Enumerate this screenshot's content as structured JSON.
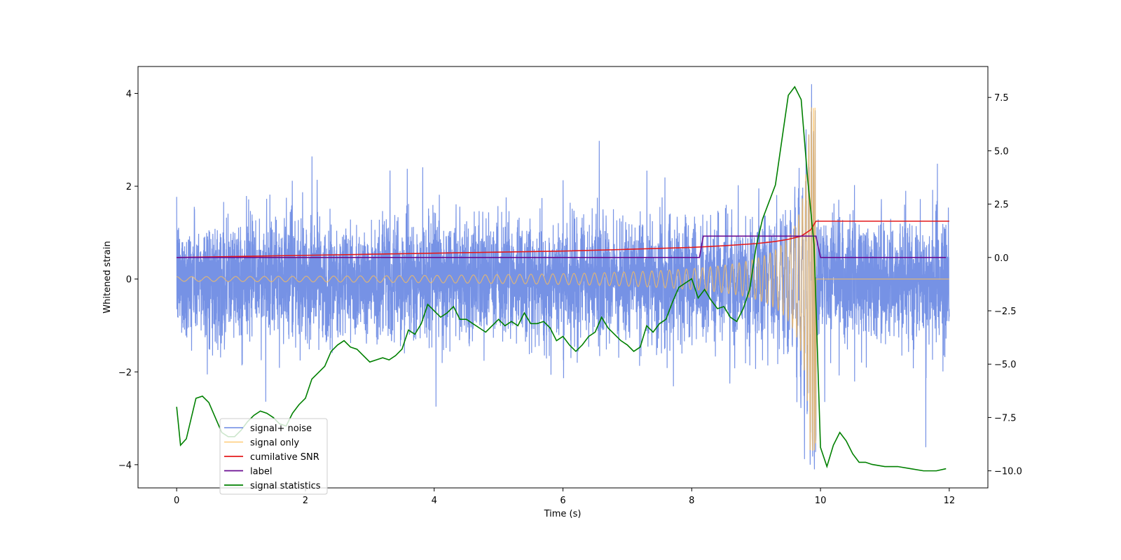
{
  "chart_data": {
    "type": "line",
    "title": "",
    "xlabel": "Time (s)",
    "ylabel": "Whitened strain",
    "y2label": "",
    "xlim": [
      -0.6,
      12.6
    ],
    "ylim": [
      -4.5,
      4.58
    ],
    "y2lim": [
      -10.8,
      8.95
    ],
    "xticks": [
      0,
      2,
      4,
      6,
      8,
      10,
      12
    ],
    "yticks": [
      -4,
      -2,
      0,
      2,
      4
    ],
    "y2ticks": [
      -10.0,
      -7.5,
      -5.0,
      -2.5,
      0.0,
      2.5,
      5.0,
      7.5
    ],
    "legend_position": "lower-left",
    "series": [
      {
        "name": "signal+ noise",
        "axis": "left",
        "color": "#6a89e3",
        "description": "Gaussian whitened noise (approx. +/-1.5 typical, spikes to about +/-4) sampled from 0 to 12 s, containing the inspiral chirp ending near 9.93 s"
      },
      {
        "name": "signal only",
        "axis": "left",
        "color": "#ffbf55",
        "chirp_start_amplitude": 0.05,
        "chirp_peak_amplitude": 3.7,
        "merger_time": 9.93,
        "description": "Chirp oscillation with amplitude growing from ~0.05 to ~3.7 at merger (~9.93 s), zero afterwards"
      },
      {
        "name": "cumilative SNR",
        "axis": "right",
        "color": "#e41a1c",
        "x": [
          0,
          1,
          2,
          3,
          4,
          5,
          6,
          7,
          8,
          8.5,
          9,
          9.3,
          9.5,
          9.7,
          9.85,
          9.93,
          10,
          12
        ],
        "y": [
          0,
          0.05,
          0.1,
          0.15,
          0.2,
          0.25,
          0.3,
          0.38,
          0.47,
          0.55,
          0.65,
          0.75,
          0.85,
          1.0,
          1.3,
          1.7,
          1.7,
          1.7
        ]
      },
      {
        "name": "label",
        "axis": "right",
        "color": "#6a0d91",
        "x": [
          0,
          8.12,
          8.18,
          9.93,
          10.0,
          11.95
        ],
        "y": [
          0,
          0,
          1,
          1,
          0,
          0
        ]
      },
      {
        "name": "signal statistics",
        "axis": "right",
        "color": "#008000",
        "x": [
          0,
          0.06,
          0.15,
          0.3,
          0.4,
          0.5,
          0.6,
          0.7,
          0.8,
          0.9,
          1.0,
          1.1,
          1.2,
          1.3,
          1.4,
          1.5,
          1.6,
          1.7,
          1.8,
          1.9,
          2.0,
          2.1,
          2.2,
          2.3,
          2.4,
          2.5,
          2.6,
          2.7,
          2.8,
          2.9,
          3.0,
          3.1,
          3.2,
          3.3,
          3.4,
          3.5,
          3.6,
          3.7,
          3.8,
          3.9,
          4.0,
          4.1,
          4.2,
          4.3,
          4.4,
          4.5,
          4.6,
          4.7,
          4.8,
          4.9,
          5.0,
          5.1,
          5.2,
          5.3,
          5.4,
          5.5,
          5.6,
          5.7,
          5.8,
          5.9,
          6.0,
          6.1,
          6.2,
          6.3,
          6.4,
          6.5,
          6.6,
          6.7,
          6.8,
          6.9,
          7.0,
          7.1,
          7.2,
          7.3,
          7.4,
          7.5,
          7.6,
          7.7,
          7.8,
          7.9,
          8.0,
          8.1,
          8.2,
          8.3,
          8.4,
          8.5,
          8.6,
          8.7,
          8.8,
          8.9,
          9.0,
          9.1,
          9.2,
          9.3,
          9.4,
          9.5,
          9.6,
          9.7,
          9.8,
          9.9,
          10.0,
          10.1,
          10.2,
          10.3,
          10.4,
          10.5,
          10.6,
          10.7,
          10.8,
          11.0,
          11.2,
          11.4,
          11.6,
          11.8,
          11.95
        ],
        "y": [
          -7.0,
          -8.8,
          -8.5,
          -6.6,
          -6.5,
          -6.8,
          -7.5,
          -8.2,
          -8.4,
          -8.4,
          -8.1,
          -7.7,
          -7.4,
          -7.2,
          -7.3,
          -7.5,
          -7.8,
          -7.9,
          -7.3,
          -6.9,
          -6.6,
          -5.7,
          -5.4,
          -5.1,
          -4.4,
          -4.1,
          -3.9,
          -4.2,
          -4.3,
          -4.6,
          -4.9,
          -4.8,
          -4.7,
          -4.8,
          -4.6,
          -4.3,
          -3.4,
          -3.6,
          -3.1,
          -2.2,
          -2.5,
          -2.8,
          -2.6,
          -2.3,
          -2.9,
          -2.9,
          -3.1,
          -3.3,
          -3.5,
          -3.2,
          -2.9,
          -3.2,
          -3.0,
          -3.2,
          -2.6,
          -3.1,
          -3.1,
          -3.0,
          -3.3,
          -3.9,
          -3.7,
          -4.1,
          -4.4,
          -4.1,
          -3.7,
          -3.5,
          -2.8,
          -3.3,
          -3.6,
          -3.9,
          -4.1,
          -4.4,
          -4.2,
          -3.2,
          -3.5,
          -3.1,
          -2.9,
          -2.1,
          -1.4,
          -1.2,
          -1.0,
          -1.9,
          -1.5,
          -2.0,
          -2.4,
          -2.3,
          -2.8,
          -3.0,
          -2.4,
          -1.5,
          0.5,
          1.8,
          2.6,
          3.4,
          5.5,
          7.6,
          8.0,
          7.4,
          3.7,
          0.6,
          -8.9,
          -9.8,
          -8.8,
          -8.2,
          -8.6,
          -9.2,
          -9.6,
          -9.6,
          -9.7,
          -9.8,
          -9.8,
          -9.9,
          -10.0,
          -10.0,
          -9.9
        ]
      }
    ]
  }
}
